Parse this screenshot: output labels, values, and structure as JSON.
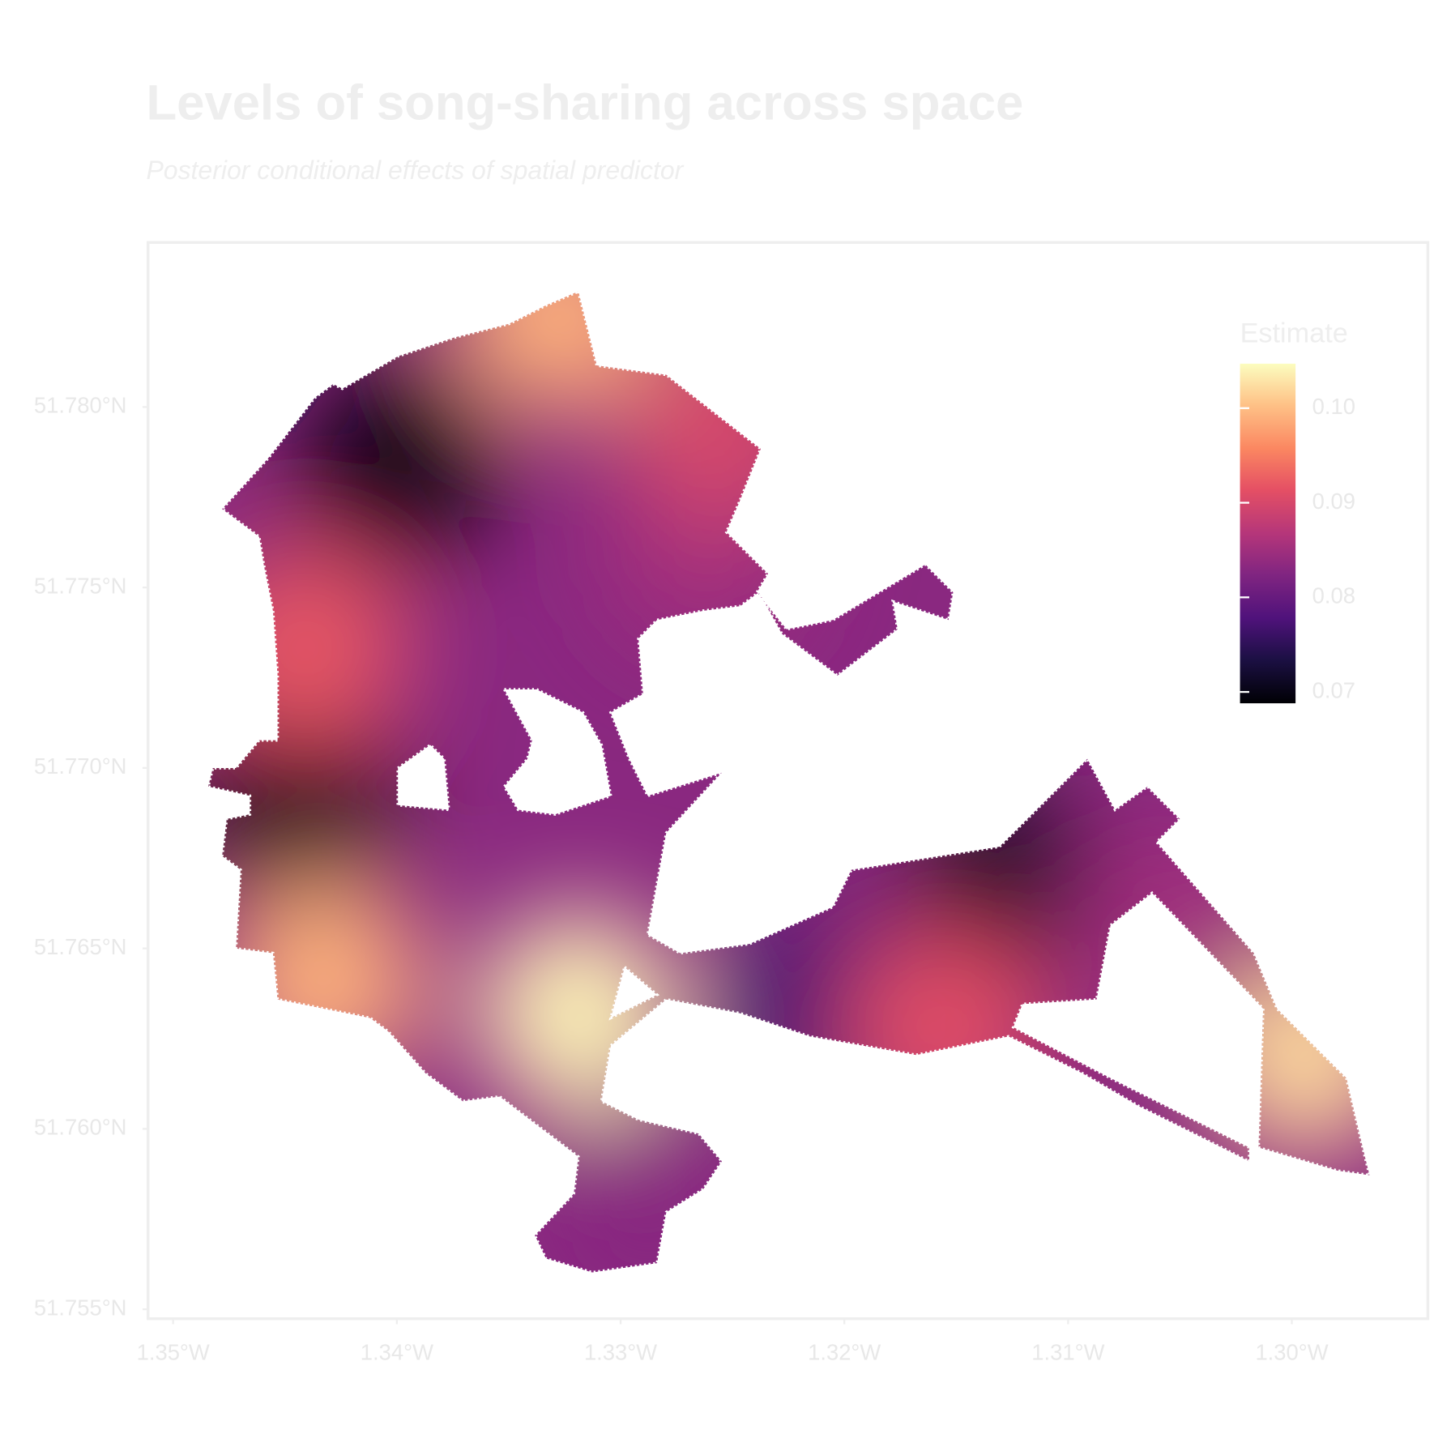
{
  "chart_data": {
    "type": "map",
    "title": "Levels of song-sharing across space",
    "subtitle": "Posterior conditional effects of spatial predictor",
    "xlim": [
      -1.35112,
      -1.29392
    ],
    "ylim": [
      51.75474,
      51.78456
    ],
    "xticks": [
      {
        "value": -1.35,
        "label": "1.35°W"
      },
      {
        "value": -1.34,
        "label": "1.34°W"
      },
      {
        "value": -1.33,
        "label": "1.33°W"
      },
      {
        "value": -1.32,
        "label": "1.32°W"
      },
      {
        "value": -1.31,
        "label": "1.31°W"
      },
      {
        "value": -1.3,
        "label": "1.30°W"
      }
    ],
    "yticks": [
      {
        "value": 51.755,
        "label": "51.755°N"
      },
      {
        "value": 51.76,
        "label": "51.760°N"
      },
      {
        "value": 51.765,
        "label": "51.765°N"
      },
      {
        "value": 51.77,
        "label": "51.770°N"
      },
      {
        "value": 51.775,
        "label": "51.775°N"
      },
      {
        "value": 51.78,
        "label": "51.780°N"
      }
    ],
    "legend": {
      "title": "Estimate",
      "colormap": "magma",
      "lim": [
        0.0688,
        0.1047
      ],
      "ticks": [
        0.07,
        0.08,
        0.09,
        0.1
      ],
      "tick_labels": [
        "0.07",
        "0.08",
        "0.09",
        "0.10"
      ]
    },
    "points": [
      {
        "lon": -1.33995,
        "lat": 51.77846,
        "value": 0.07
      },
      {
        "lon": -1.3445,
        "lat": 51.76897,
        "value": 0.07
      },
      {
        "lon": -1.31265,
        "lat": 51.76667,
        "value": 0.071
      },
      {
        "lon": -1.32134,
        "lat": 51.76333,
        "value": 0.077
      },
      {
        "lon": -1.33189,
        "lat": 51.76321,
        "value": 0.104
      },
      {
        "lon": -1.29942,
        "lat": 51.76205,
        "value": 0.102
      },
      {
        "lon": -1.34326,
        "lat": 51.7641,
        "value": 0.099
      },
      {
        "lon": -1.33292,
        "lat": 51.78256,
        "value": 0.099
      },
      {
        "lon": -1.34409,
        "lat": 51.77333,
        "value": 0.092
      },
      {
        "lon": -1.31555,
        "lat": 51.76282,
        "value": 0.091
      },
      {
        "lon": -1.32878,
        "lat": 51.75795,
        "value": 0.083
      },
      {
        "lon": -1.3263,
        "lat": 51.7759,
        "value": 0.085
      },
      {
        "lon": -1.30562,
        "lat": 51.76564,
        "value": 0.085
      },
      {
        "lon": -1.32548,
        "lat": 51.77949,
        "value": 0.09
      }
    ]
  }
}
